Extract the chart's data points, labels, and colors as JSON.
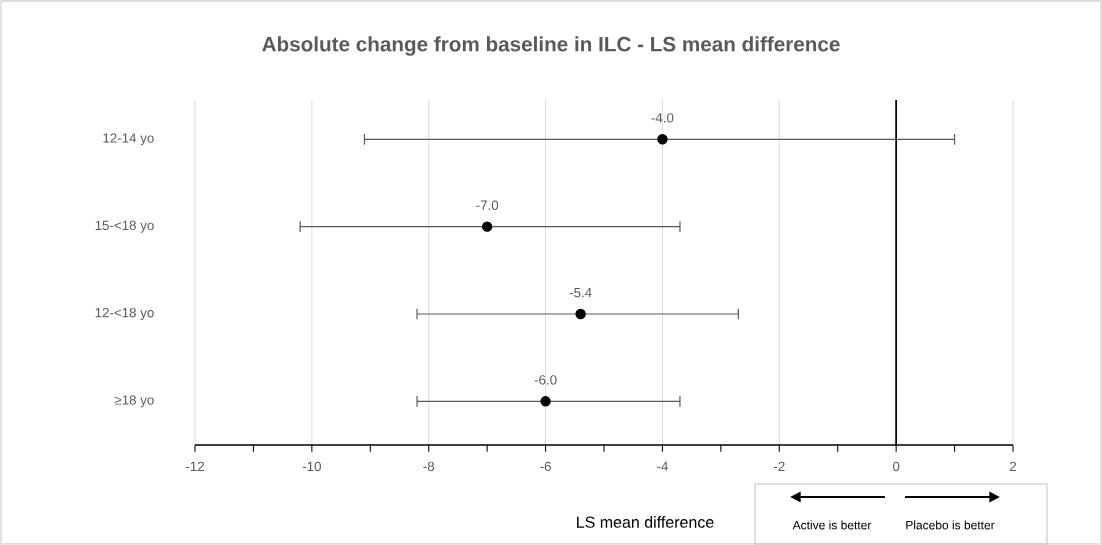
{
  "chart_data": {
    "type": "scatter",
    "orientation": "horizontal",
    "title": "Absolute change from baseline in ILC - LS mean difference",
    "xlabel": "LS mean difference",
    "categories": [
      "12-14 yo",
      "15-<18 yo",
      "12-<18 yo",
      "≥18 yo"
    ],
    "values": [
      -4.0,
      -7.0,
      -5.4,
      -6.0
    ],
    "errors": [
      [
        -9.1,
        1.0
      ],
      [
        -10.2,
        -3.7
      ],
      [
        -8.2,
        -2.7
      ],
      [
        -8.2,
        -3.7
      ]
    ],
    "value_labels": [
      "-4.0",
      "-7.0",
      "-5.4",
      "-6.0"
    ],
    "color": "#000000",
    "marker": "circle",
    "xlim": [
      -12,
      2
    ],
    "xticks": [
      -12,
      {
        "value": -11,
        "label": null
      },
      -10,
      {
        "value": -9,
        "label": null
      },
      -8,
      {
        "value": -7,
        "label": null
      },
      -6,
      {
        "value": -5,
        "label": null
      },
      -4,
      {
        "value": -3,
        "label": null
      },
      -2,
      {
        "value": -1,
        "label": null
      },
      0,
      {
        "value": 1,
        "label": null
      },
      2
    ],
    "grid": "x",
    "ref_lines": [
      {
        "axis": "x",
        "value": 0,
        "color": "#000000"
      }
    ],
    "annotations": [
      "Active is better",
      "Placebo is better"
    ]
  }
}
